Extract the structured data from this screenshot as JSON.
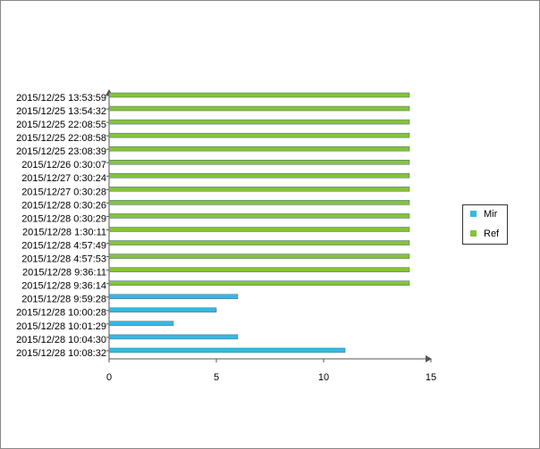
{
  "chart_data": {
    "type": "hbar",
    "categories": [
      "2015/12/25 13:53:59",
      "2015/12/25 13:54:32",
      "2015/12/25 22:08:55",
      "2015/12/25 22:08:58",
      "2015/12/25 23:08:39",
      "2015/12/26 0:30:07",
      "2015/12/27 0:30:24",
      "2015/12/27 0:30:28",
      "2015/12/28 0:30:26",
      "2015/12/28 0:30:29",
      "2015/12/28 1:30:11",
      "2015/12/28 4:57:49",
      "2015/12/28 4:57:53",
      "2015/12/28 9:36:11",
      "2015/12/28 9:36:14",
      "2015/12/28 9:59:28",
      "2015/12/28 10:00:28",
      "2015/12/28 10:01:29",
      "2015/12/28 10:04:30",
      "2015/12/28 10:08:32"
    ],
    "series": [
      {
        "name": "Mir",
        "color": "#33b9e6",
        "values": [
          null,
          null,
          null,
          null,
          null,
          null,
          null,
          null,
          null,
          null,
          null,
          null,
          null,
          null,
          null,
          6,
          5,
          3,
          6,
          11
        ]
      },
      {
        "name": "Ref",
        "color": "#86c23a",
        "values": [
          14,
          14,
          14,
          14,
          14,
          14,
          14,
          14,
          14,
          14,
          14,
          14,
          14,
          14,
          14,
          null,
          null,
          null,
          null,
          null
        ]
      }
    ],
    "xlim": [
      0,
      15
    ],
    "xticks": [
      0,
      5,
      10,
      15
    ],
    "legend": "right"
  }
}
